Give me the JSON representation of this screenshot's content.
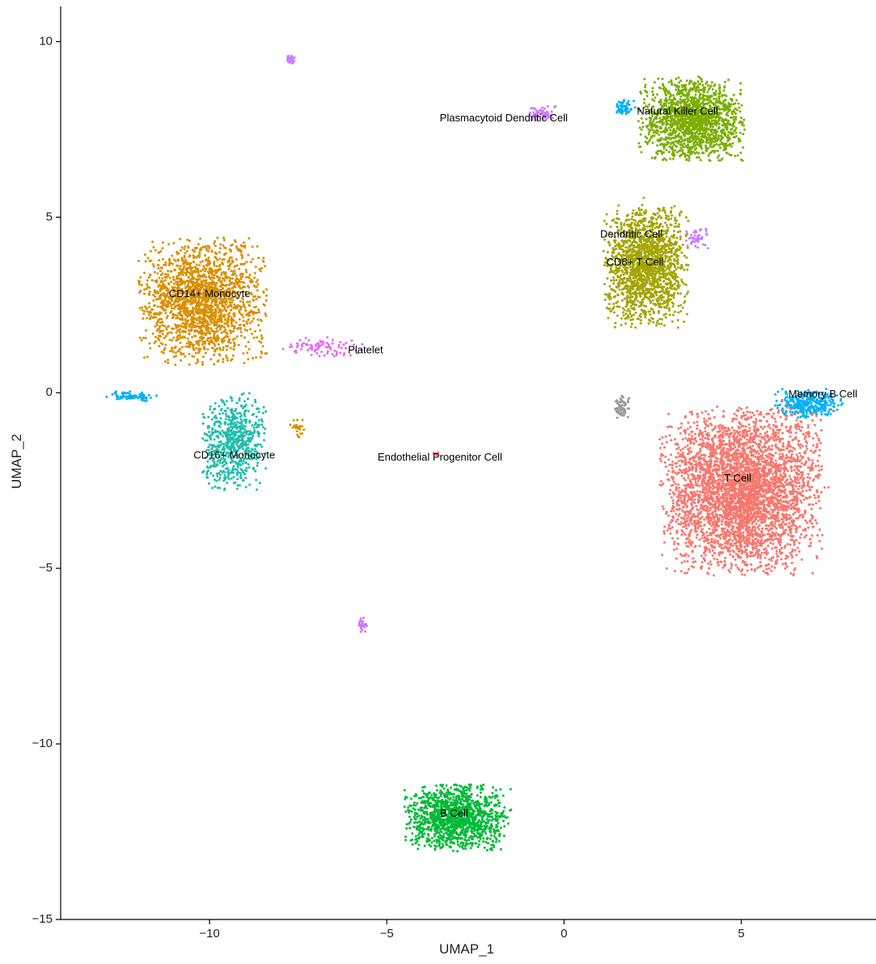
{
  "chart_data": {
    "type": "scatter",
    "title": "",
    "xlabel": "UMAP_1",
    "ylabel": "UMAP_2",
    "xlim": [
      -14.2,
      8.8
    ],
    "ylim": [
      -15,
      11
    ],
    "x_ticks": [
      -10,
      -5,
      0,
      5
    ],
    "y_ticks": [
      -15,
      -10,
      -5,
      0,
      5,
      10
    ],
    "grid": false,
    "legend": "none",
    "clusters": [
      {
        "label": "CD14+ Monocyte",
        "color": "#D89000",
        "label_x": -10.0,
        "label_y": 2.8,
        "center": [
          -10.2,
          2.6
        ],
        "spread": [
          1.5,
          1.5
        ],
        "n": 1900
      },
      {
        "label": "CD16+ Monocyte",
        "color": "#1FBEAC",
        "label_x": -9.3,
        "label_y": -1.8,
        "center": [
          -9.3,
          -1.4
        ],
        "spread": [
          0.75,
          1.15
        ],
        "n": 650
      },
      {
        "label": "Platelet",
        "color": "#E76BF3",
        "label_x": -5.6,
        "label_y": 1.2,
        "center": [
          -6.8,
          1.3
        ],
        "spread": [
          1.1,
          0.25
        ],
        "n": 90
      },
      {
        "label": "Endothelial Progenitor Cell",
        "color": "#F8766D",
        "label_x": -3.5,
        "label_y": -1.85,
        "center": [
          -3.6,
          -1.75
        ],
        "spread": [
          0.1,
          0.05
        ],
        "n": 6
      },
      {
        "label": "Plasmacytoid Dendritic Cell",
        "color": "#C77CFF",
        "label_x": -1.7,
        "label_y": 7.8,
        "center": [
          -0.6,
          7.95
        ],
        "spread": [
          0.35,
          0.18
        ],
        "n": 60
      },
      {
        "label": "Natural Killer Cell",
        "color": "#7CAE00",
        "label_x": 3.2,
        "label_y": 8.0,
        "center": [
          3.6,
          7.8
        ],
        "spread": [
          1.25,
          1.0
        ],
        "n": 1600
      },
      {
        "label": "Dendritic Cell",
        "color": "#C77CFF",
        "label_x": 1.9,
        "label_y": 4.5,
        "center": [
          3.8,
          4.4
        ],
        "spread": [
          0.35,
          0.3
        ],
        "n": 50
      },
      {
        "label": "CD8+ T Cell",
        "color": "#A3A500",
        "label_x": 2.0,
        "label_y": 3.7,
        "center": [
          2.3,
          3.6
        ],
        "spread": [
          1.0,
          1.45
        ],
        "n": 1700
      },
      {
        "label": "Memory B Cell",
        "color": "#00B0F6",
        "label_x": 7.3,
        "label_y": -0.05,
        "center": [
          6.9,
          -0.3
        ],
        "spread": [
          0.8,
          0.35
        ],
        "n": 330
      },
      {
        "label": "T Cell",
        "color": "#F8766D",
        "label_x": 4.9,
        "label_y": -2.45,
        "center": [
          5.0,
          -2.8
        ],
        "spread": [
          1.9,
          2.0
        ],
        "n": 4000
      },
      {
        "label": "B Cell",
        "color": "#00BA38",
        "label_x": -3.1,
        "label_y": -12.0,
        "center": [
          -3.0,
          -12.1
        ],
        "spread": [
          1.25,
          0.8
        ],
        "n": 1300
      }
    ],
    "minor_groups": [
      {
        "label": "",
        "color": "#00B0F6",
        "center": [
          -12.2,
          -0.1
        ],
        "spread": [
          0.6,
          0.12
        ],
        "n": 70
      },
      {
        "label": "",
        "color": "#999999",
        "center": [
          1.65,
          -0.45
        ],
        "spread": [
          0.18,
          0.3
        ],
        "n": 60
      },
      {
        "label": "",
        "color": "#C77CFF",
        "center": [
          -7.7,
          9.5
        ],
        "spread": [
          0.1,
          0.1
        ],
        "n": 30
      },
      {
        "label": "",
        "color": "#C77CFF",
        "center": [
          -5.7,
          -6.6
        ],
        "spread": [
          0.12,
          0.18
        ],
        "n": 25
      },
      {
        "label": "",
        "color": "#00B0F6",
        "center": [
          1.7,
          8.1
        ],
        "spread": [
          0.25,
          0.2
        ],
        "n": 60
      },
      {
        "label": "",
        "color": "#D89000",
        "center": [
          -7.5,
          -1.0
        ],
        "spread": [
          0.25,
          0.25
        ],
        "n": 25
      }
    ]
  }
}
